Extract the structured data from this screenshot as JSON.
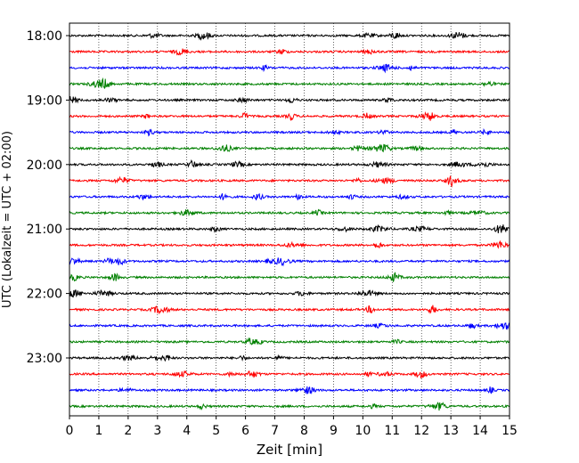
{
  "chart_data": {
    "type": "line",
    "title": "",
    "xlabel": "Zeit  [min]",
    "ylabel": "UTC (Lokalzeit = UTC + 02:00)",
    "xlim": [
      0,
      15
    ],
    "x_ticks": [
      "0",
      "1",
      "2",
      "3",
      "4",
      "5",
      "6",
      "7",
      "8",
      "9",
      "10",
      "11",
      "12",
      "13",
      "14",
      "15"
    ],
    "y_tick_labels": [
      "18:00",
      "19:00",
      "20:00",
      "21:00",
      "22:00",
      "23:00"
    ],
    "trace_interval_minutes": 15,
    "trace_start": "18:00",
    "trace_count": 24,
    "trace_colors": [
      "#000000",
      "#ff0000",
      "#0000ff",
      "#008000"
    ],
    "vertical_grid": "dotted, every minute",
    "legend": "none"
  }
}
